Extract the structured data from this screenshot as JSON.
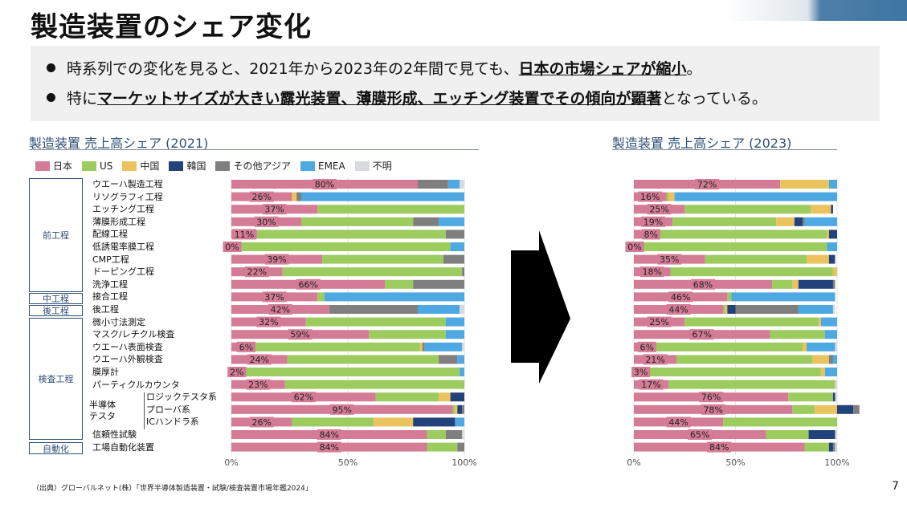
{
  "title": "製造装置のシェア変化",
  "bullets": {
    "b1_pre": "時系列での変化を見ると、2021年から2023年の2年間で見ても、",
    "b1_bold": "日本の市場シェアが縮小",
    "b1_post": "。",
    "b2_pre": "特に",
    "b2_bold": "マーケットサイズが大きい露光装置、薄膜形成、エッチング装置でその傾向が顕著",
    "b2_post": "となっている。"
  },
  "legend": [
    {
      "name": "日本",
      "color": "#d47b95"
    },
    {
      "name": "US",
      "color": "#9bcc5d"
    },
    {
      "name": "中国",
      "color": "#eac35e"
    },
    {
      "name": "韓国",
      "color": "#22427a"
    },
    {
      "name": "その他アジア",
      "color": "#7f7f7f"
    },
    {
      "name": "EMEA",
      "color": "#4ea8e2"
    },
    {
      "name": "不明",
      "color": "#d9dadf"
    }
  ],
  "groups": {
    "front": "前工程",
    "middle": "中工程",
    "back": "後工程",
    "inspection": "検査工程",
    "automation": "自動化",
    "semiconductor_tester": "半導体\nテスタ"
  },
  "row_labels": [
    "ウエーハ製造工程",
    "リソグラフィ工程",
    "エッチング工程",
    "薄膜形成工程",
    "配線工程",
    "低誘電率膜工程",
    "CMP工程",
    "ドーピング工程",
    "洗浄工程",
    "接合工程",
    "後工程",
    "微小寸法測定",
    "マスク/レチクル検査",
    "ウエーハ表面検査",
    "ウエーハ外観検査",
    "膜厚計",
    "パーティクルカウンタ",
    "ロジックテスタ系",
    "プローバ系",
    "ICハンドラ系",
    "信頼性試験",
    "工場自動化装置"
  ],
  "source": "（出典）グローバルネット(株）「世界半導体製造装置・試験/検査装置市場年鑑2024」",
  "page_number": "7",
  "chart_data": [
    {
      "type": "bar",
      "title": "製造装置 売上高シェア (2021)",
      "orientation": "horizontal-stacked-100",
      "x_ticks": [
        "0%",
        "50%",
        "100%"
      ],
      "categories": [
        "ウエーハ製造工程",
        "リソグラフィ工程",
        "エッチング工程",
        "薄膜形成工程",
        "配線工程",
        "低誘電率膜工程",
        "CMP工程",
        "ドーピング工程",
        "洗浄工程",
        "接合工程",
        "後工程",
        "微小寸法測定",
        "マスク/レチクル検査",
        "ウエーハ表面検査",
        "ウエーハ外観検査",
        "膜厚計",
        "パーティクルカウンタ",
        "ロジックテスタ系",
        "プローバ系",
        "ICハンドラ系",
        "信頼性試験",
        "工場自動化装置"
      ],
      "series": [
        {
          "name": "日本",
          "values": [
            80,
            26,
            37,
            30,
            11,
            0,
            39,
            22,
            66,
            37,
            42,
            32,
            59,
            6,
            24,
            2,
            23,
            62,
            95,
            26,
            84,
            84
          ]
        },
        {
          "name": "US",
          "values": [
            0,
            0,
            63,
            48,
            81,
            94,
            52,
            77,
            12,
            3,
            0,
            60,
            33,
            75,
            65,
            96,
            77,
            27,
            1,
            35,
            8,
            13
          ]
        },
        {
          "name": "中国",
          "values": [
            0,
            2,
            0,
            0,
            0,
            0,
            0,
            0,
            0,
            0,
            0,
            0,
            0,
            1,
            0,
            0,
            0,
            5,
            1,
            17,
            0,
            0
          ]
        },
        {
          "name": "韓国",
          "values": [
            0,
            0,
            0,
            0,
            0,
            0,
            0,
            0,
            0,
            0,
            0,
            0,
            0,
            0,
            0,
            0,
            0,
            6,
            2,
            18,
            0,
            0
          ]
        },
        {
          "name": "その他アジア",
          "values": [
            13,
            2,
            0,
            11,
            8,
            0,
            9,
            1,
            22,
            0,
            38,
            0,
            0,
            1,
            8,
            0,
            0,
            0,
            1,
            0,
            7,
            3
          ]
        },
        {
          "name": "EMEA",
          "values": [
            5,
            70,
            0,
            11,
            0,
            6,
            0,
            0,
            0,
            60,
            18,
            8,
            8,
            16,
            3,
            2,
            0,
            0,
            0,
            4,
            0,
            0
          ]
        },
        {
          "name": "不明",
          "values": [
            2,
            0,
            0,
            0,
            0,
            0,
            0,
            0,
            0,
            0,
            2,
            0,
            0,
            1,
            0,
            0,
            0,
            0,
            0,
            0,
            1,
            0
          ]
        }
      ]
    },
    {
      "type": "bar",
      "title": "製造装置 売上高シェア (2023)",
      "orientation": "horizontal-stacked-100",
      "x_ticks": [
        "0%",
        "50%",
        "100%"
      ],
      "categories": [
        "ウエーハ製造工程",
        "リソグラフィ工程",
        "エッチング工程",
        "薄膜形成工程",
        "配線工程",
        "低誘電率膜工程",
        "CMP工程",
        "ドーピング工程",
        "洗浄工程",
        "接合工程",
        "後工程",
        "微小寸法測定",
        "マスク/レチクル検査",
        "ウエーハ表面検査",
        "ウエーハ外観検査",
        "膜厚計",
        "パーティクルカウンタ",
        "ロジックテスタ系",
        "プローバ系",
        "ICハンドラ系",
        "信頼性試験",
        "工場自動化装置"
      ],
      "series": [
        {
          "name": "日本",
          "values": [
            72,
            16,
            25,
            19,
            8,
            0,
            35,
            18,
            68,
            46,
            44,
            25,
            67,
            6,
            21,
            3,
            17,
            76,
            78,
            44,
            65,
            84
          ]
        },
        {
          "name": "US",
          "values": [
            0,
            1,
            62,
            51,
            87,
            95,
            50,
            80,
            10,
            2,
            1,
            66,
            27,
            77,
            67,
            89,
            82,
            22,
            11,
            56,
            21,
            12
          ]
        },
        {
          "name": "中国",
          "values": [
            24,
            3,
            10,
            9,
            1,
            0,
            11,
            2,
            3,
            0,
            1,
            1,
            0,
            2,
            8,
            2,
            0,
            0,
            11,
            0,
            0,
            0
          ]
        },
        {
          "name": "韓国",
          "values": [
            0,
            0,
            1,
            4,
            4,
            0,
            3,
            0,
            17,
            0,
            4,
            0,
            0,
            0,
            0,
            0,
            0,
            1,
            8,
            0,
            13,
            2
          ]
        },
        {
          "name": "その他アジア",
          "values": [
            0,
            0,
            0,
            1,
            0,
            0,
            0,
            0,
            1,
            0,
            31,
            0,
            0,
            0,
            2,
            0,
            0,
            0,
            3,
            0,
            0,
            1
          ]
        },
        {
          "name": "EMEA",
          "values": [
            4,
            80,
            0,
            16,
            0,
            5,
            0,
            0,
            0,
            51,
            17,
            8,
            6,
            14,
            2,
            6,
            0,
            0,
            0,
            0,
            0,
            0
          ]
        },
        {
          "name": "不明",
          "values": [
            0,
            0,
            0,
            0,
            0,
            0,
            0,
            0,
            0,
            0,
            1,
            0,
            0,
            1,
            0,
            0,
            1,
            1,
            0,
            0,
            1,
            1
          ]
        }
      ]
    }
  ]
}
